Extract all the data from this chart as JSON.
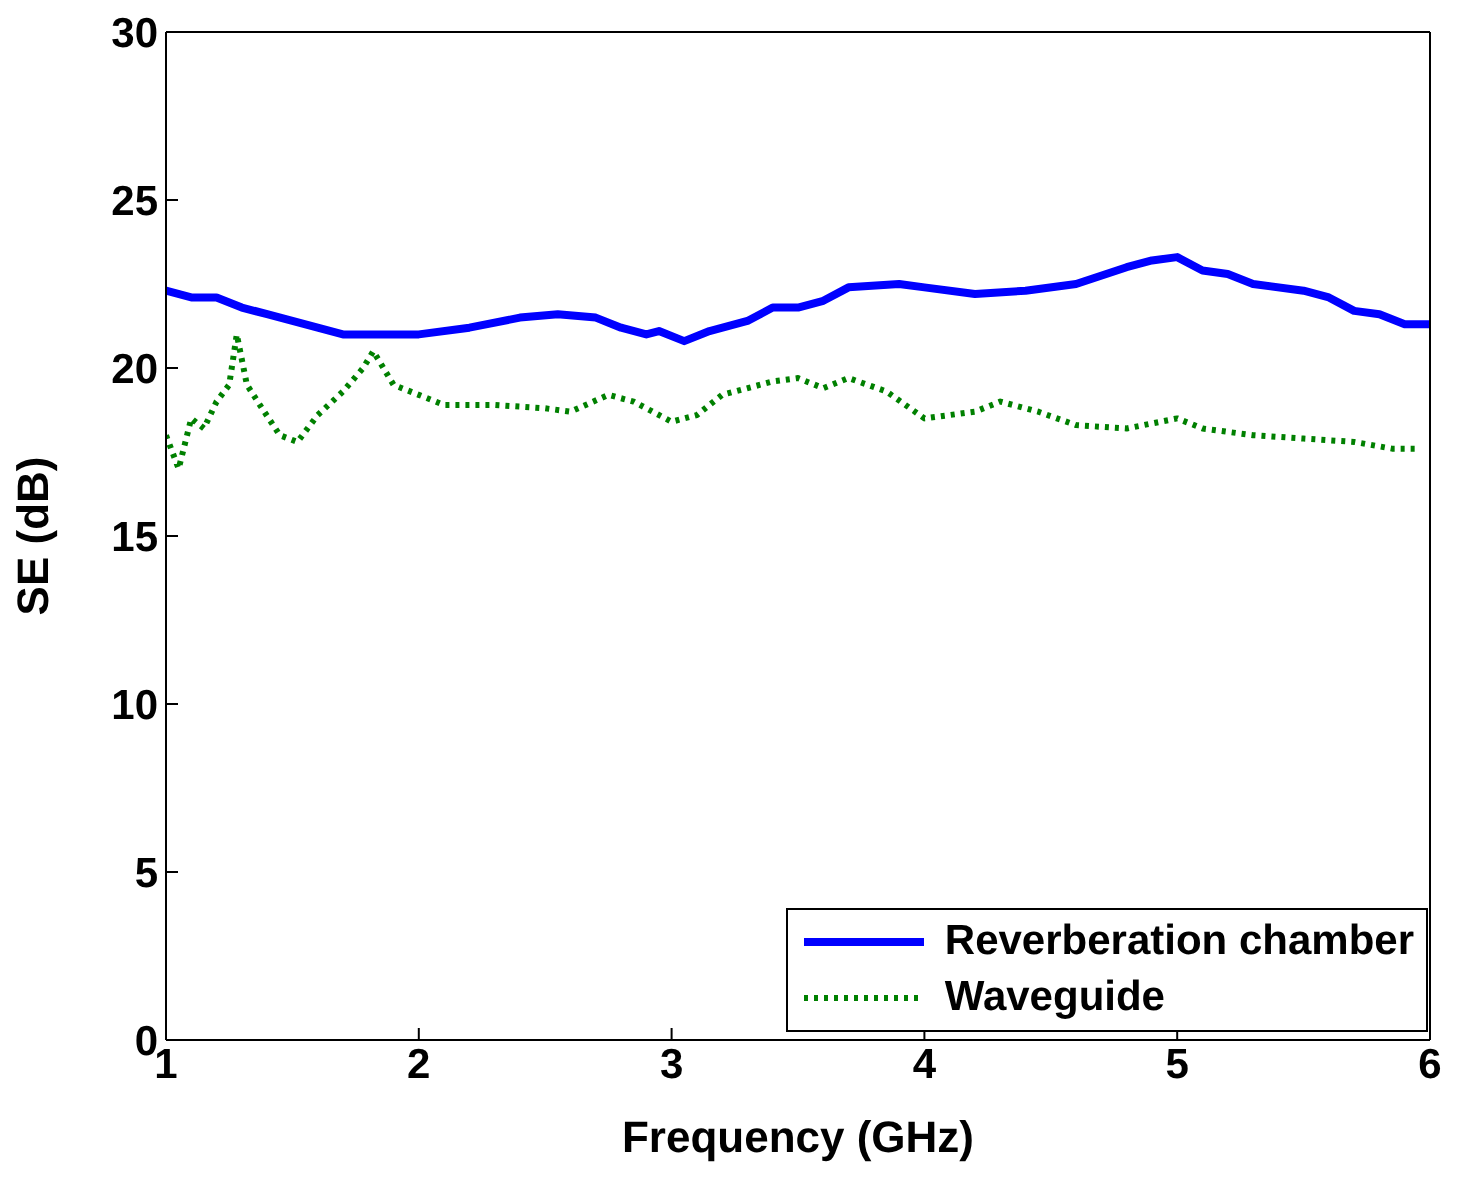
{
  "chart_data": {
    "type": "line",
    "xlabel": "Frequency (GHz)",
    "ylabel": "SE (dB)",
    "xlim": [
      1,
      6
    ],
    "xticks": [
      1,
      2,
      3,
      4,
      5,
      6
    ],
    "ylim": [
      0,
      30
    ],
    "yticks": [
      0,
      5,
      10,
      15,
      20,
      25,
      30
    ],
    "legend": "bottom right",
    "marker": "none",
    "series": [
      {
        "name": "Reverberation chamber",
        "color": "#0000ff",
        "line_style": "solid",
        "x": [
          1.0,
          1.1,
          1.2,
          1.3,
          1.4,
          1.5,
          1.6,
          1.7,
          1.8,
          2.0,
          2.2,
          2.4,
          2.55,
          2.7,
          2.8,
          2.9,
          2.95,
          3.05,
          3.15,
          3.3,
          3.4,
          3.5,
          3.6,
          3.7,
          3.9,
          4.0,
          4.2,
          4.4,
          4.6,
          4.8,
          4.9,
          5.0,
          5.1,
          5.2,
          5.3,
          5.5,
          5.6,
          5.7,
          5.8,
          5.9,
          6.0
        ],
        "values": [
          22.3,
          22.1,
          22.1,
          21.8,
          21.6,
          21.4,
          21.2,
          21.0,
          21.0,
          21.0,
          21.2,
          21.5,
          21.6,
          21.5,
          21.2,
          21.0,
          21.1,
          20.8,
          21.1,
          21.4,
          21.8,
          21.8,
          22.0,
          22.4,
          22.5,
          22.4,
          22.2,
          22.3,
          22.5,
          23.0,
          23.2,
          23.3,
          22.9,
          22.8,
          22.5,
          22.3,
          22.1,
          21.7,
          21.6,
          21.3,
          21.3
        ]
      },
      {
        "name": "Waveguide",
        "color": "#008000",
        "line_style": "dotted",
        "x": [
          1.0,
          1.05,
          1.1,
          1.15,
          1.2,
          1.25,
          1.28,
          1.32,
          1.38,
          1.45,
          1.52,
          1.6,
          1.7,
          1.78,
          1.82,
          1.9,
          2.0,
          2.1,
          2.3,
          2.5,
          2.6,
          2.75,
          2.85,
          3.0,
          3.1,
          3.2,
          3.4,
          3.5,
          3.6,
          3.7,
          3.85,
          4.0,
          4.2,
          4.3,
          4.45,
          4.6,
          4.8,
          5.0,
          5.1,
          5.3,
          5.5,
          5.7,
          5.85,
          5.95
        ],
        "values": [
          18.0,
          17.0,
          18.5,
          18.2,
          19.0,
          19.5,
          21.0,
          19.5,
          18.8,
          18.0,
          17.8,
          18.6,
          19.3,
          20.0,
          20.5,
          19.5,
          19.2,
          18.9,
          18.9,
          18.8,
          18.7,
          19.2,
          19.0,
          18.4,
          18.6,
          19.2,
          19.6,
          19.7,
          19.4,
          19.7,
          19.3,
          18.5,
          18.7,
          19.0,
          18.7,
          18.3,
          18.2,
          18.5,
          18.2,
          18.0,
          17.9,
          17.8,
          17.6,
          17.6
        ]
      }
    ]
  }
}
